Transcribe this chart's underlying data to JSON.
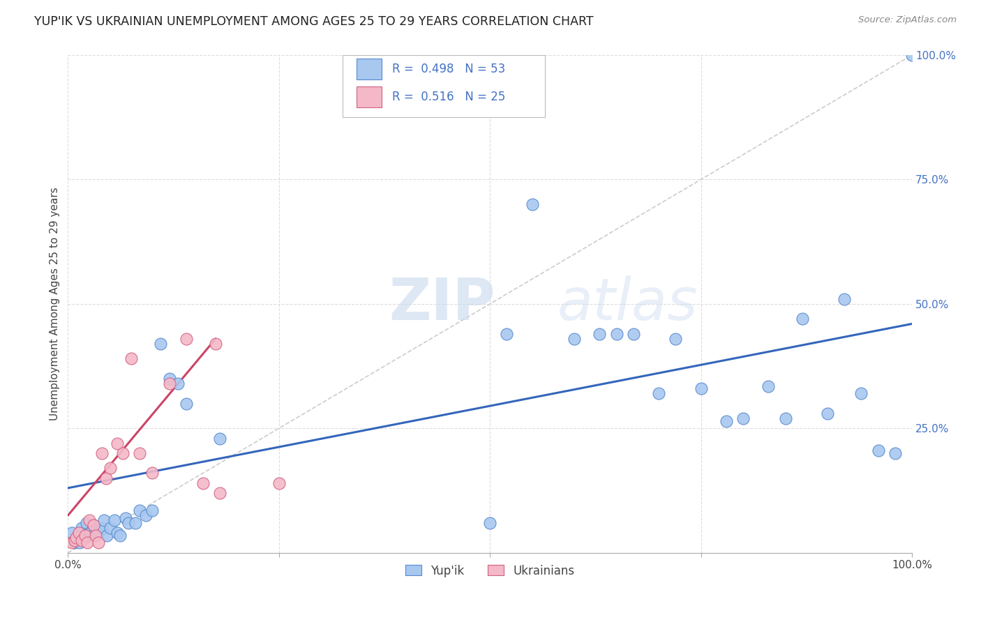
{
  "title": "YUP'IK VS UKRAINIAN UNEMPLOYMENT AMONG AGES 25 TO 29 YEARS CORRELATION CHART",
  "source": "Source: ZipAtlas.com",
  "ylabel": "Unemployment Among Ages 25 to 29 years",
  "xlim": [
    0,
    1
  ],
  "ylim": [
    0,
    1
  ],
  "r_yupik": 0.498,
  "n_yupik": 53,
  "r_ukrainian": 0.516,
  "n_ukrainian": 25,
  "blue_color": "#a8c8f0",
  "pink_color": "#f4b8c8",
  "blue_edge_color": "#5588cc",
  "pink_edge_color": "#d06080",
  "blue_line_color": "#3366bb",
  "pink_line_color": "#cc4466",
  "diagonal_color": "#cccccc",
  "grid_color": "#dddddd",
  "yupik_x": [
    0.005,
    0.008,
    0.01,
    0.012,
    0.014,
    0.016,
    0.018,
    0.02,
    0.022,
    0.025,
    0.027,
    0.03,
    0.033,
    0.036,
    0.04,
    0.043,
    0.046,
    0.05,
    0.055,
    0.058,
    0.062,
    0.068,
    0.072,
    0.08,
    0.085,
    0.092,
    0.1,
    0.11,
    0.12,
    0.13,
    0.14,
    0.18,
    0.5,
    0.52,
    0.55,
    0.6,
    0.63,
    0.65,
    0.67,
    0.7,
    0.72,
    0.75,
    0.78,
    0.8,
    0.83,
    0.85,
    0.87,
    0.9,
    0.92,
    0.94,
    0.96,
    0.98,
    1.0
  ],
  "yupik_y": [
    0.04,
    0.02,
    0.025,
    0.035,
    0.02,
    0.05,
    0.03,
    0.03,
    0.06,
    0.04,
    0.04,
    0.055,
    0.045,
    0.04,
    0.05,
    0.065,
    0.035,
    0.05,
    0.065,
    0.04,
    0.035,
    0.07,
    0.06,
    0.06,
    0.085,
    0.075,
    0.085,
    0.42,
    0.35,
    0.34,
    0.3,
    0.23,
    0.06,
    0.44,
    0.7,
    0.43,
    0.44,
    0.44,
    0.44,
    0.32,
    0.43,
    0.33,
    0.265,
    0.27,
    0.335,
    0.27,
    0.47,
    0.28,
    0.51,
    0.32,
    0.205,
    0.2,
    1.0
  ],
  "ukrainian_x": [
    0.005,
    0.008,
    0.01,
    0.013,
    0.016,
    0.02,
    0.023,
    0.025,
    0.03,
    0.033,
    0.036,
    0.04,
    0.045,
    0.05,
    0.058,
    0.065,
    0.075,
    0.085,
    0.1,
    0.12,
    0.14,
    0.16,
    0.175,
    0.18,
    0.25
  ],
  "ukrainian_y": [
    0.02,
    0.025,
    0.03,
    0.04,
    0.025,
    0.035,
    0.02,
    0.065,
    0.055,
    0.035,
    0.02,
    0.2,
    0.15,
    0.17,
    0.22,
    0.2,
    0.39,
    0.2,
    0.16,
    0.34,
    0.43,
    0.14,
    0.42,
    0.12,
    0.14
  ],
  "blue_trend_x": [
    0.0,
    1.0
  ],
  "blue_trend_y": [
    0.13,
    0.46
  ],
  "pink_trend_x": [
    0.0,
    0.175
  ],
  "pink_trend_y": [
    0.075,
    0.43
  ],
  "watermark_zip": "ZIP",
  "watermark_atlas": "atlas"
}
